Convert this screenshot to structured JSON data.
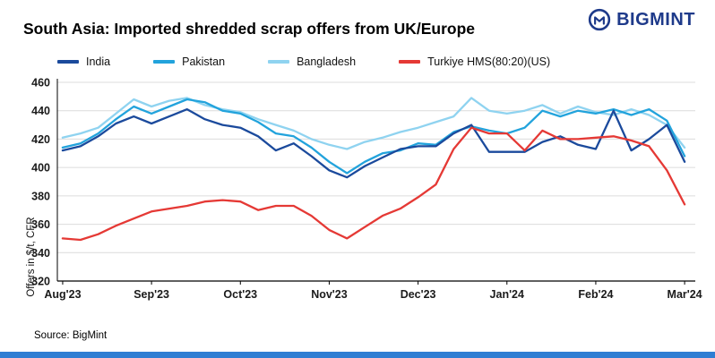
{
  "header": {
    "title": "South Asia: Imported shredded scrap offers from UK/Europe",
    "brand": "BIGMINT",
    "brand_color": "#1E3A8A"
  },
  "footer": {
    "source": "Source: BigMint",
    "bar_color": "#2F7ED3"
  },
  "chart_data": {
    "type": "line",
    "title": "South Asia: Imported shredded scrap offers from UK/Europe",
    "xlabel": "",
    "ylabel": "Offers in $/t, CFR",
    "ylim": [
      320,
      460
    ],
    "yticks": [
      320,
      340,
      360,
      380,
      400,
      420,
      440,
      460
    ],
    "xlim": [
      -0.06,
      7.12
    ],
    "xtick_positions": [
      0,
      1,
      2,
      3,
      4,
      5,
      6,
      7
    ],
    "xticks": [
      "Aug'23",
      "Sep'23",
      "Oct'23",
      "Nov'23",
      "Dec'23",
      "Jan'24",
      "Feb'24",
      "Mar'24"
    ],
    "grid": "horizontal",
    "legend_position": "top",
    "x": [
      0,
      0.2,
      0.4,
      0.6,
      0.8,
      1,
      1.2,
      1.4,
      1.6,
      1.8,
      2,
      2.2,
      2.4,
      2.6,
      2.8,
      3,
      3.2,
      3.4,
      3.6,
      3.8,
      4,
      4.2,
      4.4,
      4.6,
      4.8,
      5,
      5.2,
      5.4,
      5.6,
      5.8,
      6,
      6.2,
      6.4,
      6.6,
      6.8,
      7
    ],
    "draw_order": [
      2,
      1,
      0,
      3
    ],
    "series": [
      {
        "name": "India",
        "color": "#1B4A9C",
        "values": [
          412,
          415,
          422,
          431,
          436,
          431,
          436,
          441,
          434,
          430,
          428,
          422,
          412,
          417,
          408,
          398,
          393,
          401,
          407,
          413,
          415,
          415,
          424,
          430,
          411,
          411,
          411,
          418,
          422,
          416,
          413,
          440,
          412,
          420,
          430,
          404
        ]
      },
      {
        "name": "Pakistan",
        "color": "#22A3DC",
        "values": [
          414,
          417,
          424,
          434,
          443,
          438,
          443,
          448,
          446,
          440,
          438,
          432,
          424,
          422,
          414,
          404,
          396,
          404,
          410,
          412,
          417,
          416,
          425,
          429,
          426,
          424,
          428,
          440,
          436,
          440,
          438,
          441,
          437,
          441,
          433,
          408
        ]
      },
      {
        "name": "Bangladesh",
        "color": "#8FD3F0",
        "values": [
          421,
          424,
          428,
          438,
          448,
          443,
          447,
          449,
          444,
          441,
          439,
          434,
          430,
          426,
          420,
          416,
          413,
          418,
          421,
          425,
          428,
          432,
          436,
          449,
          440,
          438,
          440,
          444,
          438,
          443,
          439,
          437,
          441,
          437,
          430,
          414
        ]
      },
      {
        "name": "Turkiye HMS(80:20)(US)",
        "color": "#E53935",
        "values": [
          350,
          349,
          353,
          359,
          364,
          369,
          371,
          373,
          376,
          377,
          376,
          370,
          373,
          373,
          366,
          356,
          350,
          358,
          366,
          371,
          379,
          388,
          413,
          428,
          424,
          424,
          412,
          426,
          420,
          420,
          421,
          422,
          419,
          415,
          398,
          374
        ]
      }
    ]
  }
}
